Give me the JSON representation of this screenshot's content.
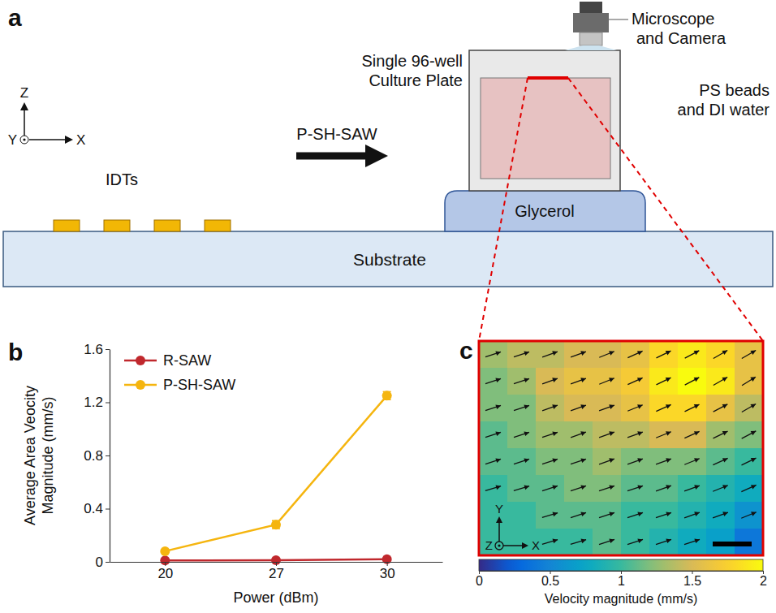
{
  "diagram": {
    "panel_label": "a",
    "axes": {
      "x": "X",
      "y": "Y",
      "z": "Z"
    },
    "labels": {
      "idts": "IDTs",
      "wave": "P-SH-SAW",
      "substrate": "Substrate",
      "glycerol": "Glycerol",
      "plate": [
        "Single 96-well",
        "Culture Plate"
      ],
      "sample": [
        "PS beads",
        "and DI water"
      ],
      "microscope": [
        "Microscope",
        "and Camera"
      ]
    }
  },
  "chart_data": [
    {
      "panel_label": "b",
      "type": "line",
      "categories": [
        20,
        27,
        30
      ],
      "x_label": "Power (dBm)",
      "y_label": "Average Area Veocity Magnitude (mm/s)",
      "ylim": [
        0,
        1.6
      ],
      "yticks": [
        0,
        0.4,
        0.8,
        1.2,
        1.6
      ],
      "legend": "upper left",
      "marker": "circle",
      "series": [
        {
          "name": "R-SAW",
          "color": "#c0282d",
          "values": [
            0.01,
            0.012,
            0.02
          ],
          "errors": [
            0.002,
            0.002,
            0.003
          ]
        },
        {
          "name": "P-SH-SAW",
          "color": "#f5b50f",
          "values": [
            0.08,
            0.28,
            1.25
          ],
          "errors": [
            0.005,
            0.03,
            0.03
          ]
        }
      ]
    },
    {
      "panel_label": "c",
      "type": "heatmap",
      "axis_labels": {
        "x": "X",
        "y": "Y",
        "z": "Z"
      },
      "cells": [
        [
          1.3,
          1.4,
          1.4,
          1.5,
          1.5,
          1.6,
          1.8,
          1.9,
          1.8,
          1.6
        ],
        [
          1.2,
          1.3,
          1.5,
          1.6,
          1.6,
          1.7,
          1.9,
          2.0,
          1.9,
          1.6
        ],
        [
          1.2,
          1.2,
          1.4,
          1.5,
          1.5,
          1.6,
          1.8,
          1.8,
          1.6,
          1.4
        ],
        [
          1.1,
          1.2,
          1.3,
          1.3,
          1.4,
          1.4,
          1.5,
          1.5,
          1.3,
          1.2
        ],
        [
          1.1,
          1.1,
          1.2,
          1.2,
          1.3,
          1.2,
          1.2,
          1.2,
          1.1,
          1.0
        ],
        [
          1.0,
          1.1,
          1.1,
          1.2,
          1.2,
          1.1,
          1.1,
          1.0,
          0.9,
          0.8
        ],
        [
          1.0,
          1.0,
          1.1,
          1.1,
          1.1,
          1.0,
          1.0,
          0.9,
          0.8,
          0.6
        ],
        [
          1.0,
          1.0,
          1.0,
          1.0,
          1.1,
          1.0,
          0.9,
          0.8,
          0.7,
          0.4
        ]
      ],
      "directions": [
        [
          18,
          18,
          20,
          20,
          22,
          24,
          26,
          28,
          30,
          30
        ],
        [
          18,
          18,
          20,
          20,
          22,
          24,
          26,
          28,
          30,
          32
        ],
        [
          18,
          18,
          20,
          20,
          20,
          22,
          24,
          26,
          28,
          30
        ],
        [
          18,
          18,
          18,
          20,
          20,
          20,
          22,
          24,
          26,
          28
        ],
        [
          18,
          18,
          18,
          18,
          20,
          20,
          20,
          22,
          24,
          26
        ],
        [
          16,
          16,
          18,
          18,
          18,
          18,
          20,
          20,
          22,
          24
        ],
        [
          null,
          null,
          16,
          18,
          18,
          18,
          18,
          20,
          20,
          22
        ],
        [
          null,
          null,
          16,
          16,
          18,
          18,
          18,
          18,
          null,
          null
        ]
      ],
      "colorbar": {
        "range": [
          0,
          2
        ],
        "ticks": [
          0,
          0.5,
          1,
          1.5,
          2
        ],
        "label": "Velocity magnitude (mm/s)"
      }
    }
  ]
}
